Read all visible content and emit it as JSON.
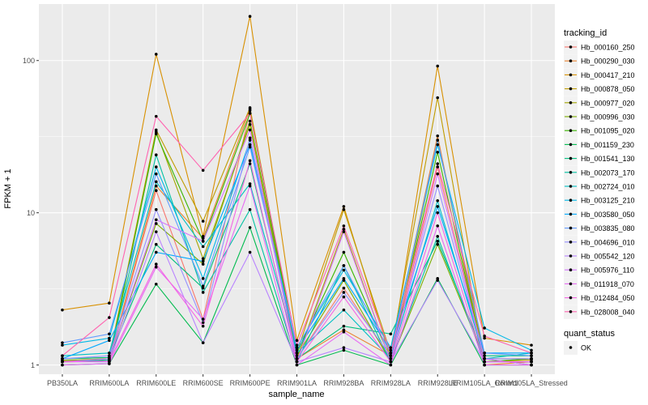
{
  "chart_data": {
    "type": "line",
    "xlabel": "sample_name",
    "ylabel": "FPKM + 1",
    "y_scale": "log10",
    "ylim": [
      0.87,
      235
    ],
    "y_ticks": [
      1,
      10,
      100
    ],
    "y_tick_labels": [
      "1",
      "10",
      "100"
    ],
    "grid": true,
    "legend_placement": "right",
    "categories": [
      "PB350LA",
      "RRIM600LA",
      "RRIM600LE",
      "RRIM600SE",
      "RRIM600PE",
      "RRIM901LA",
      "RRIM928BA",
      "RRIM928LA",
      "RRIM928LE",
      "RRIM105LA_Control",
      "RRIM105LA_Stressed"
    ],
    "series": [
      {
        "name": "Hb_000160_250",
        "color": "#F8766D",
        "values": [
          1.05,
          1.06,
          14.0,
          2.0,
          47.0,
          1.1,
          3.2,
          1.1,
          20.0,
          1.1,
          1.1
        ]
      },
      {
        "name": "Hb_000290_030",
        "color": "#EA8331",
        "values": [
          1.06,
          1.08,
          15.0,
          6.8,
          48.0,
          1.1,
          1.7,
          1.15,
          32.0,
          1.0,
          1.05
        ]
      },
      {
        "name": "Hb_000417_210",
        "color": "#D89000",
        "values": [
          2.3,
          2.55,
          110.0,
          7.0,
          195.0,
          1.45,
          11.0,
          1.1,
          92.0,
          1.5,
          1.35
        ]
      },
      {
        "name": "Hb_000878_050",
        "color": "#C09B00",
        "values": [
          1.1,
          1.12,
          35.0,
          8.8,
          49.0,
          1.2,
          10.5,
          1.2,
          57.0,
          1.05,
          1.08
        ]
      },
      {
        "name": "Hb_000977_020",
        "color": "#A3A500",
        "values": [
          1.05,
          1.06,
          34.0,
          5.0,
          38.0,
          1.1,
          7.8,
          1.05,
          30.0,
          1.1,
          1.1
        ]
      },
      {
        "name": "Hb_000996_030",
        "color": "#7CAE00",
        "values": [
          1.07,
          1.1,
          8.5,
          4.6,
          40.0,
          1.15,
          3.6,
          1.05,
          6.2,
          1.1,
          1.0
        ]
      },
      {
        "name": "Hb_001095_020",
        "color": "#39B600",
        "values": [
          1.05,
          1.08,
          33.0,
          6.5,
          45.0,
          1.2,
          5.5,
          1.1,
          25.0,
          1.05,
          1.1
        ]
      },
      {
        "name": "Hb_001159_230",
        "color": "#00BB4E",
        "values": [
          1.0,
          1.02,
          3.4,
          1.4,
          8.0,
          1.0,
          1.25,
          1.0,
          3.7,
          1.0,
          1.0
        ]
      },
      {
        "name": "Hb_001541_130",
        "color": "#00BF7D",
        "values": [
          1.1,
          1.12,
          6.2,
          3.2,
          21.0,
          1.1,
          1.8,
          1.6,
          6.5,
          1.15,
          1.15
        ]
      },
      {
        "name": "Hb_002073_170",
        "color": "#00C1A3",
        "values": [
          1.05,
          1.08,
          24.0,
          3.0,
          10.5,
          1.05,
          4.5,
          1.05,
          7.0,
          1.05,
          1.05
        ]
      },
      {
        "name": "Hb_002724_010",
        "color": "#00BFC4",
        "values": [
          1.15,
          1.2,
          16.0,
          6.0,
          15.5,
          1.2,
          2.3,
          1.1,
          12.0,
          1.1,
          1.2
        ]
      },
      {
        "name": "Hb_003125_210",
        "color": "#00B8E7",
        "values": [
          1.35,
          1.5,
          20.0,
          3.7,
          30.0,
          1.3,
          4.2,
          1.3,
          28.0,
          1.75,
          1.25
        ]
      },
      {
        "name": "Hb_003580_050",
        "color": "#00A9FF",
        "values": [
          1.1,
          1.45,
          5.5,
          4.8,
          28.0,
          1.25,
          3.7,
          1.25,
          11.0,
          1.2,
          1.2
        ]
      },
      {
        "name": "Hb_003835_080",
        "color": "#619CFF",
        "values": [
          1.4,
          1.6,
          18.0,
          3.3,
          27.0,
          1.3,
          4.5,
          1.2,
          30.0,
          1.2,
          1.15
        ]
      },
      {
        "name": "Hb_004696_010",
        "color": "#9590FF",
        "values": [
          1.1,
          1.15,
          10.5,
          1.9,
          31.0,
          1.1,
          3.0,
          1.15,
          15.0,
          1.1,
          1.1
        ]
      },
      {
        "name": "Hb_005542_120",
        "color": "#B983FF",
        "values": [
          1.05,
          1.05,
          7.5,
          1.4,
          5.5,
          1.05,
          1.3,
          1.05,
          3.6,
          1.05,
          1.05
        ]
      },
      {
        "name": "Hb_005976_110",
        "color": "#D575FE",
        "values": [
          1.05,
          1.1,
          9.0,
          6.5,
          35.0,
          1.05,
          7.5,
          1.05,
          18.0,
          1.1,
          1.0
        ]
      },
      {
        "name": "Hb_011918_070",
        "color": "#E76BF3",
        "values": [
          1.0,
          1.02,
          4.4,
          2.0,
          15.0,
          1.0,
          1.65,
          1.0,
          8.2,
          1.0,
          1.0
        ]
      },
      {
        "name": "Hb_012484_050",
        "color": "#F564E3",
        "values": [
          1.05,
          1.06,
          4.6,
          1.8,
          22.0,
          1.05,
          2.8,
          1.05,
          10.0,
          1.05,
          1.05
        ]
      },
      {
        "name": "Hb_028008_040",
        "color": "#FF64B0",
        "values": [
          1.15,
          2.05,
          43.0,
          19.0,
          45.0,
          1.35,
          8.2,
          1.2,
          21.0,
          1.55,
          1.2
        ]
      }
    ],
    "legends": [
      {
        "title": "tracking_id",
        "entries": [
          "Hb_000160_250",
          "Hb_000290_030",
          "Hb_000417_210",
          "Hb_000878_050",
          "Hb_000977_020",
          "Hb_000996_030",
          "Hb_001095_020",
          "Hb_001159_230",
          "Hb_001541_130",
          "Hb_002073_170",
          "Hb_002724_010",
          "Hb_003125_210",
          "Hb_003580_050",
          "Hb_003835_080",
          "Hb_004696_010",
          "Hb_005542_120",
          "Hb_005976_110",
          "Hb_011918_070",
          "Hb_012484_050",
          "Hb_028008_040"
        ]
      },
      {
        "title": "quant_status",
        "entries": [
          "OK"
        ]
      }
    ],
    "colors": {
      "panel_background": "#EBEBEB",
      "gridline": "#FFFFFF",
      "point": "#000000"
    }
  }
}
